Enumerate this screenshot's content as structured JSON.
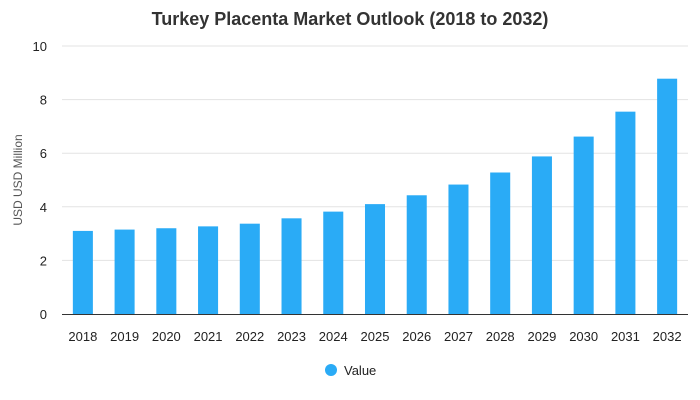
{
  "chart_data": {
    "type": "bar",
    "title": "Turkey Placenta Market Outlook (2018 to 2032)",
    "xlabel": "",
    "ylabel": "USD USD Million",
    "ylim": [
      0,
      10
    ],
    "yticks": [
      0,
      2,
      4,
      6,
      8,
      10
    ],
    "grid": true,
    "legend_position": "bottom",
    "categories": [
      "2018",
      "2019",
      "2020",
      "2021",
      "2022",
      "2023",
      "2024",
      "2025",
      "2026",
      "2027",
      "2028",
      "2029",
      "2030",
      "2031",
      "2032"
    ],
    "series": [
      {
        "name": "Value",
        "color": "#2AABF6",
        "values": [
          3.1,
          3.15,
          3.2,
          3.27,
          3.37,
          3.57,
          3.82,
          4.1,
          4.43,
          4.83,
          5.28,
          5.88,
          6.62,
          7.55,
          8.78
        ]
      }
    ]
  }
}
